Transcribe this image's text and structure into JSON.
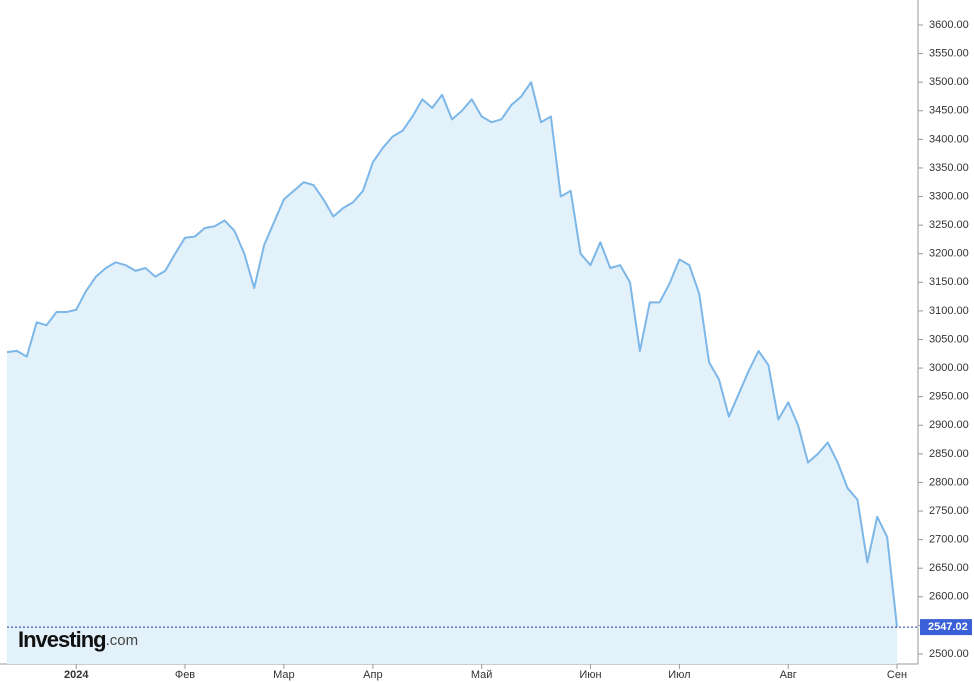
{
  "chart_data": {
    "type": "area",
    "watermark": {
      "name": "Investing",
      "suffix": ".com"
    },
    "categories": [
      null,
      null,
      null,
      null,
      null,
      null,
      null,
      "2024",
      null,
      null,
      null,
      null,
      null,
      null,
      null,
      null,
      null,
      null,
      "Фев",
      null,
      null,
      null,
      null,
      null,
      null,
      null,
      null,
      null,
      "Мар",
      null,
      null,
      null,
      null,
      null,
      null,
      null,
      null,
      "Апр",
      null,
      null,
      null,
      null,
      null,
      null,
      null,
      null,
      null,
      null,
      "Май",
      null,
      null,
      null,
      null,
      null,
      null,
      null,
      null,
      null,
      null,
      "Июн",
      null,
      null,
      null,
      null,
      null,
      null,
      null,
      null,
      "Июл",
      null,
      null,
      null,
      null,
      null,
      null,
      null,
      null,
      null,
      null,
      "Авг",
      null,
      null,
      null,
      null,
      null,
      null,
      null,
      null,
      null,
      null,
      "Сен"
    ],
    "values": [
      3028,
      3030,
      3020,
      3080,
      3075,
      3098,
      3098,
      3102,
      3135,
      3160,
      3175,
      3185,
      3180,
      3170,
      3175,
      3160,
      3170,
      3200,
      3228,
      3230,
      3245,
      3248,
      3258,
      3240,
      3200,
      3140,
      3215,
      3255,
      3295,
      3310,
      3325,
      3320,
      3295,
      3265,
      3280,
      3290,
      3310,
      3360,
      3385,
      3405,
      3415,
      3440,
      3470,
      3455,
      3478,
      3435,
      3450,
      3470,
      3440,
      3430,
      3435,
      3460,
      3475,
      3500,
      3430,
      3440,
      3300,
      3310,
      3200,
      3180,
      3220,
      3175,
      3180,
      3150,
      3030,
      3115,
      3115,
      3148,
      3190,
      3180,
      3130,
      3010,
      2980,
      2915,
      2955,
      2995,
      3030,
      3005,
      2910,
      2940,
      2900,
      2835,
      2850,
      2870,
      2835,
      2790,
      2770,
      2660,
      2740,
      2705,
      2547.02
    ],
    "color": "#7db7e8",
    "fill": "#e3f1fa",
    "last_color": "#3a5fd6",
    "ylim": [
      2482.5,
      3643.7
    ],
    "yticks": [
      {
        "value": 2500,
        "label": "2500.00"
      },
      {
        "value": 2550,
        "label": "2550.00"
      },
      {
        "value": 2600,
        "label": "2600.00"
      },
      {
        "value": 2650,
        "label": "2650.00"
      },
      {
        "value": 2700,
        "label": "2700.00"
      },
      {
        "value": 2750,
        "label": "2750.00"
      },
      {
        "value": 2800,
        "label": "2800.00"
      },
      {
        "value": 2850,
        "label": "2850.00"
      },
      {
        "value": 2900,
        "label": "2900.00"
      },
      {
        "value": 2950,
        "label": "2950.00"
      },
      {
        "value": 3000,
        "label": "3000.00"
      },
      {
        "value": 3050,
        "label": "3050.00"
      },
      {
        "value": 3100,
        "label": "3100.00"
      },
      {
        "value": 3150,
        "label": "3150.00"
      },
      {
        "value": 3200,
        "label": "3200.00"
      },
      {
        "value": 3250,
        "label": "3250.00"
      },
      {
        "value": 3300,
        "label": "3300.00"
      },
      {
        "value": 3350,
        "label": "3350.00"
      },
      {
        "value": 3400,
        "label": "3400.00"
      },
      {
        "value": 3450,
        "label": "3450.00"
      },
      {
        "value": 3500,
        "label": "3500.00"
      },
      {
        "value": 3550,
        "label": "3550.00"
      },
      {
        "value": 3600,
        "label": "3600.00"
      }
    ],
    "grid": false
  }
}
